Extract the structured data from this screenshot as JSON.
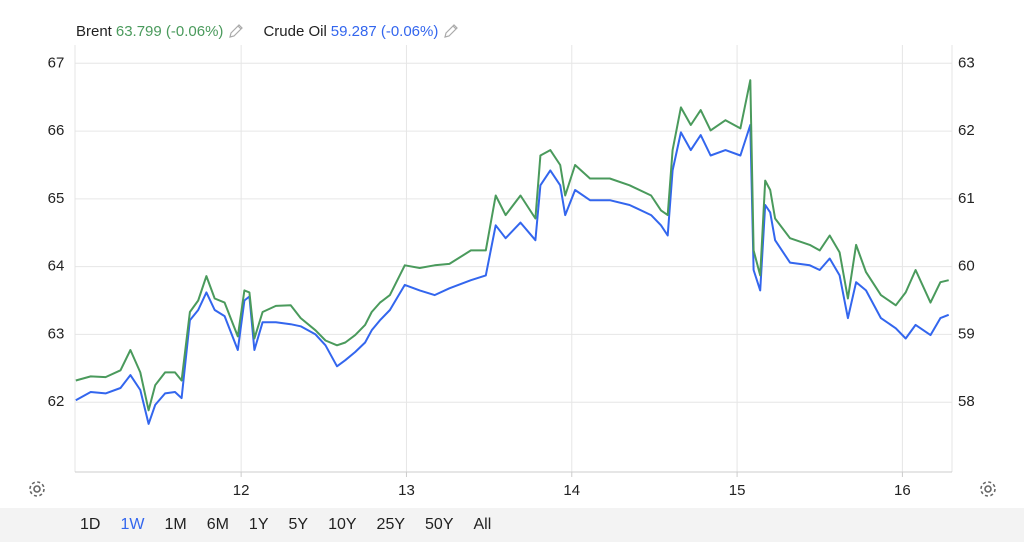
{
  "chart_data": {
    "type": "line",
    "x": [
      11.0,
      11.09,
      11.18,
      11.27,
      11.33,
      11.39,
      11.44,
      11.48,
      11.54,
      11.6,
      11.64,
      11.69,
      11.74,
      11.79,
      11.84,
      11.9,
      11.98,
      12.02,
      12.05,
      12.08,
      12.13,
      12.21,
      12.3,
      12.36,
      12.45,
      12.51,
      12.58,
      12.63,
      12.69,
      12.75,
      12.79,
      12.84,
      12.9,
      12.99,
      13.08,
      13.17,
      13.26,
      13.39,
      13.48,
      13.54,
      13.6,
      13.69,
      13.78,
      13.81,
      13.87,
      13.93,
      13.96,
      14.02,
      14.11,
      14.23,
      14.35,
      14.48,
      14.54,
      14.58,
      14.61,
      14.66,
      14.72,
      14.78,
      14.84,
      14.93,
      15.02,
      15.08,
      15.1,
      15.14,
      15.17,
      15.2,
      15.23,
      15.32,
      15.44,
      15.5,
      15.56,
      15.62,
      15.67,
      15.72,
      15.78,
      15.87,
      15.96,
      16.02,
      16.08,
      16.17,
      16.23,
      16.28
    ],
    "series": [
      {
        "name": "Crude Oil",
        "last_label": "59.287 (-0.06%)",
        "color": "#3366ee",
        "axis": "y2",
        "values": [
          58.03,
          58.15,
          58.13,
          58.21,
          58.4,
          58.18,
          57.68,
          57.96,
          58.13,
          58.15,
          58.06,
          59.21,
          59.36,
          59.62,
          59.36,
          59.27,
          58.77,
          59.5,
          59.56,
          58.77,
          59.18,
          59.18,
          59.15,
          59.12,
          59.0,
          58.84,
          58.53,
          58.62,
          58.74,
          58.88,
          59.06,
          59.21,
          59.36,
          59.73,
          59.65,
          59.58,
          59.68,
          59.8,
          59.87,
          60.61,
          60.42,
          60.65,
          60.39,
          61.2,
          61.42,
          61.2,
          60.76,
          61.13,
          60.98,
          60.98,
          60.91,
          60.76,
          60.61,
          60.46,
          61.42,
          61.98,
          61.72,
          61.94,
          61.64,
          61.72,
          61.64,
          62.09,
          59.95,
          59.65,
          60.91,
          60.8,
          60.39,
          60.06,
          60.02,
          59.95,
          60.12,
          59.87,
          59.24,
          59.77,
          59.65,
          59.24,
          59.09,
          58.94,
          59.14,
          58.99,
          59.24,
          59.29
        ]
      },
      {
        "name": "Brent",
        "last_label": "63.799 (-0.06%)",
        "color": "#4a9a5c",
        "axis": "y",
        "values": [
          62.32,
          62.38,
          62.37,
          62.47,
          62.77,
          62.44,
          61.88,
          62.25,
          62.44,
          62.44,
          62.32,
          63.33,
          63.5,
          63.86,
          63.53,
          63.47,
          62.97,
          63.65,
          63.62,
          62.94,
          63.33,
          63.42,
          63.43,
          63.24,
          63.06,
          62.91,
          62.84,
          62.88,
          62.99,
          63.14,
          63.33,
          63.47,
          63.58,
          64.02,
          63.98,
          64.02,
          64.04,
          64.24,
          64.24,
          65.05,
          64.76,
          65.05,
          64.71,
          65.64,
          65.72,
          65.5,
          65.05,
          65.5,
          65.3,
          65.3,
          65.2,
          65.05,
          64.83,
          64.76,
          65.72,
          66.35,
          66.09,
          66.31,
          66.01,
          66.16,
          66.04,
          66.75,
          64.24,
          63.87,
          65.27,
          65.13,
          64.71,
          64.42,
          64.32,
          64.24,
          64.46,
          64.21,
          63.53,
          64.32,
          63.92,
          63.58,
          63.43,
          63.62,
          63.95,
          63.47,
          63.77,
          63.8
        ]
      }
    ],
    "xlim": [
      10.995,
      16.3
    ],
    "xticks": [
      12,
      13,
      14,
      15,
      16
    ],
    "ylim": [
      60.97,
      67.27
    ],
    "yticks": [
      62,
      63,
      64,
      65,
      66,
      67
    ],
    "y2lim": [
      56.97,
      63.27
    ],
    "y2ticks": [
      58,
      59,
      60,
      61,
      62,
      63
    ],
    "grid": true
  },
  "range_buttons": [
    "1D",
    "1W",
    "1M",
    "6M",
    "1Y",
    "5Y",
    "10Y",
    "25Y",
    "50Y",
    "All"
  ],
  "selected_range_index": 1
}
